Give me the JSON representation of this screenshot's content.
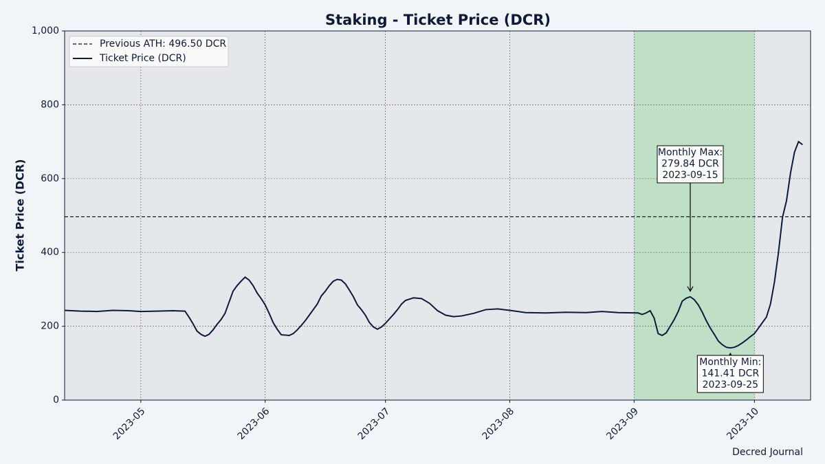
{
  "chart_data": {
    "type": "line",
    "title": "Staking - Ticket Price (DCR)",
    "y_label": "Ticket Price (DCR)",
    "footer": "Decred Journal",
    "grid": true,
    "legend_position": "upper left",
    "xlim": [
      "2023-04-12",
      "2023-10-15"
    ],
    "xticks": [
      {
        "value": "2023-05-01",
        "label": "2023-05"
      },
      {
        "value": "2023-06-01",
        "label": "2023-06"
      },
      {
        "value": "2023-07-01",
        "label": "2023-07"
      },
      {
        "value": "2023-08-01",
        "label": "2023-08"
      },
      {
        "value": "2023-09-01",
        "label": "2023-09"
      },
      {
        "value": "2023-10-01",
        "label": "2023-10"
      }
    ],
    "ylim": [
      0,
      1000
    ],
    "yticks": [
      0,
      200,
      400,
      600,
      800,
      {
        "value": 1000,
        "label": "1,000"
      }
    ],
    "highlight": {
      "start": "2023-09-01",
      "end": "2023-10-01",
      "color": "#bfe0c6"
    },
    "reference_lines": [
      {
        "name": "Previous ATH: 496.50 DCR",
        "value": 496.5,
        "color": "#0d1a3a",
        "style": "dashed"
      }
    ],
    "x": [
      "2023-04-12",
      "2023-04-16",
      "2023-04-20",
      "2023-04-24",
      "2023-04-28",
      "2023-05-01",
      "2023-05-05",
      "2023-05-09",
      "2023-05-12",
      "2023-05-13",
      "2023-05-14",
      "2023-05-15",
      "2023-05-16",
      "2023-05-17",
      "2023-05-18",
      "2023-05-19",
      "2023-05-20",
      "2023-05-21",
      "2023-05-22",
      "2023-05-23",
      "2023-05-24",
      "2023-05-25",
      "2023-05-26",
      "2023-05-27",
      "2023-05-28",
      "2023-05-29",
      "2023-05-30",
      "2023-05-31",
      "2023-06-01",
      "2023-06-02",
      "2023-06-03",
      "2023-06-04",
      "2023-06-05",
      "2023-06-07",
      "2023-06-08",
      "2023-06-09",
      "2023-06-10",
      "2023-06-11",
      "2023-06-12",
      "2023-06-13",
      "2023-06-14",
      "2023-06-15",
      "2023-06-16",
      "2023-06-17",
      "2023-06-18",
      "2023-06-19",
      "2023-06-20",
      "2023-06-21",
      "2023-06-22",
      "2023-06-23",
      "2023-06-24",
      "2023-06-25",
      "2023-06-26",
      "2023-06-27",
      "2023-06-28",
      "2023-06-29",
      "2023-06-30",
      "2023-07-01",
      "2023-07-02",
      "2023-07-03",
      "2023-07-04",
      "2023-07-05",
      "2023-07-06",
      "2023-07-08",
      "2023-07-10",
      "2023-07-12",
      "2023-07-14",
      "2023-07-16",
      "2023-07-18",
      "2023-07-20",
      "2023-07-23",
      "2023-07-26",
      "2023-07-29",
      "2023-08-01",
      "2023-08-05",
      "2023-08-10",
      "2023-08-15",
      "2023-08-20",
      "2023-08-24",
      "2023-08-28",
      "2023-09-02",
      "2023-09-03",
      "2023-09-04",
      "2023-09-05",
      "2023-09-06",
      "2023-09-07",
      "2023-09-08",
      "2023-09-09",
      "2023-09-10",
      "2023-09-11",
      "2023-09-12",
      "2023-09-13",
      "2023-09-14",
      "2023-09-15",
      "2023-09-16",
      "2023-09-17",
      "2023-09-18",
      "2023-09-19",
      "2023-09-20",
      "2023-09-21",
      "2023-09-22",
      "2023-09-23",
      "2023-09-24",
      "2023-09-25",
      "2023-09-26",
      "2023-09-27",
      "2023-09-28",
      "2023-09-29",
      "2023-09-30",
      "2023-10-01",
      "2023-10-02",
      "2023-10-03",
      "2023-10-04",
      "2023-10-05",
      "2023-10-06",
      "2023-10-07",
      "2023-10-08",
      "2023-10-09",
      "2023-10-10",
      "2023-10-11",
      "2023-10-12",
      "2023-10-13"
    ],
    "series": [
      {
        "name": "Ticket Price (DCR)",
        "color": "#0d1a3a",
        "values": [
          243,
          241,
          240,
          243,
          242,
          240,
          241,
          242,
          241,
          225,
          207,
          187,
          178,
          173,
          178,
          190,
          205,
          218,
          235,
          265,
          295,
          310,
          322,
          333,
          325,
          310,
          290,
          275,
          258,
          235,
          210,
          192,
          177,
          175,
          180,
          190,
          202,
          215,
          230,
          245,
          260,
          282,
          295,
          310,
          322,
          327,
          325,
          315,
          298,
          280,
          258,
          245,
          230,
          210,
          198,
          192,
          198,
          208,
          220,
          232,
          245,
          260,
          270,
          277,
          275,
          262,
          242,
          230,
          226,
          228,
          235,
          245,
          247,
          243,
          237,
          236,
          238,
          237,
          240,
          237,
          236,
          232,
          236,
          242,
          222,
          180,
          175,
          182,
          200,
          218,
          240,
          268,
          276,
          279.84,
          272,
          258,
          238,
          215,
          195,
          178,
          160,
          150,
          143,
          141.41,
          143,
          148,
          155,
          163,
          172,
          180,
          195,
          210,
          225,
          260,
          320,
          400,
          495,
          540,
          615,
          672,
          700,
          692
        ]
      }
    ],
    "annotations": [
      {
        "lines": [
          "Monthly Max:",
          "279.84 DCR",
          "2023-09-15"
        ],
        "x": "2023-09-15",
        "y": 279.84,
        "position": "above"
      },
      {
        "lines": [
          "Monthly Min:",
          "141.41 DCR",
          "2023-09-25"
        ],
        "x": "2023-09-25",
        "y": 141.41,
        "position": "below"
      }
    ]
  }
}
